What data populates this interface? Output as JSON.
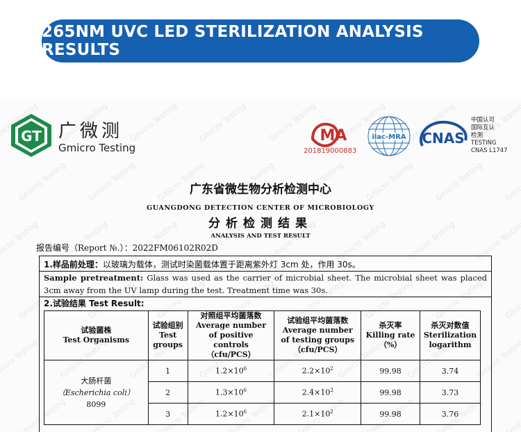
{
  "banner": {
    "title": "265NM UVC LED STERILIZATION ANALYSIS RESULTS"
  },
  "header": {
    "logo_letters": "GT",
    "brand_cn": "广微测",
    "brand_en": "Gmicro Testing",
    "cma_label": "MA",
    "cma_number": "201819000883",
    "ilac_label": "ilac-MRA",
    "cnas_label": "CNAS",
    "cnas_info": [
      "中国认可",
      "国际互认",
      "检测",
      "TESTING",
      "CNAS L1747"
    ]
  },
  "watermark": "Gmicro Testing",
  "titles": {
    "center_cn": "广东省微生物分析检测中心",
    "center_en": "GUANGDONG DETECTION CENTER OF MICROBIOLOGY",
    "result_cn": "分析检测结果",
    "result_en": "ANALYSIS AND TEST RESULT"
  },
  "report_no": "报告编号（Report №.）：2022FM06102R02D",
  "pretreatment": {
    "cn_label": "1.样品前处理：",
    "cn_text": "以玻璃为载体，测试时染菌载体置于距离紫外灯 3cm 处，作用 30s。",
    "en_label": "Sample pretreatment:",
    "en_text": "Glass was used as the carrier of microbial sheet. The microbial sheet was placed 3cm away from the UV lamp during the test. Treatment time was 30s."
  },
  "result_heading": "2.试验结果 Test Result:",
  "table": {
    "headers": {
      "organism_cn": "试验菌株",
      "organism_en": "Test Organisms",
      "group_cn": "试验组别",
      "group_en": "Test groups",
      "control_cn": "对照组平均菌落数",
      "control_en": "Average number of positive controls",
      "control_unit": "（cfu/PCS）",
      "testing_cn": "试验组平均菌落数",
      "testing_en": "Average number of testing groups",
      "testing_unit": "（cfu/PCS）",
      "kill_cn": "杀灭率",
      "kill_en": "Killing rate",
      "kill_unit": "（%）",
      "log_cn": "杀灭对数值",
      "log_en": "Sterilization logarithm"
    },
    "organism": {
      "cn": "大肠杆菌",
      "latin": "（Escherichia coli）",
      "strain": "8099"
    },
    "rows": [
      {
        "group": "1",
        "control_mant": "1.2×10",
        "control_exp": "6",
        "testing_mant": "2.2×10",
        "testing_exp": "2",
        "kill": "99.98",
        "log": "3.74"
      },
      {
        "group": "2",
        "control_mant": "1.3×10",
        "control_exp": "6",
        "testing_mant": "2.4×10",
        "testing_exp": "2",
        "kill": "99.98",
        "log": "3.73"
      },
      {
        "group": "3",
        "control_mant": "1.2×10",
        "control_exp": "6",
        "testing_mant": "2.1×10",
        "testing_exp": "2",
        "kill": "99.98",
        "log": "3.76"
      }
    ]
  },
  "colors": {
    "banner": "#1560b0",
    "logo_green": "#1e8a4a",
    "cma_red": "#c4302b",
    "ilac_blue": "#2a6fb3",
    "cnas_blue": "#1b4f9c"
  }
}
